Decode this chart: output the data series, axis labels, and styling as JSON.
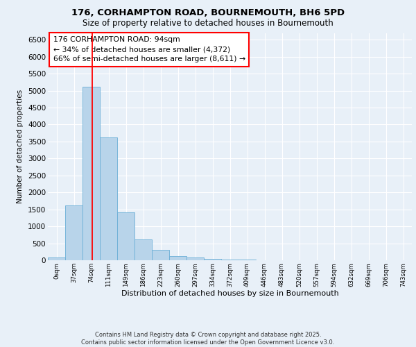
{
  "title_line1": "176, CORHAMPTON ROAD, BOURNEMOUTH, BH6 5PD",
  "title_line2": "Size of property relative to detached houses in Bournemouth",
  "xlabel": "Distribution of detached houses by size in Bournemouth",
  "ylabel": "Number of detached properties",
  "bar_color": "#b8d4ea",
  "bar_edge_color": "#6aaed6",
  "vline_color": "red",
  "annotation_text": "176 CORHAMPTON ROAD: 94sqm\n← 34% of detached houses are smaller (4,372)\n66% of semi-detached houses are larger (8,611) →",
  "categories": [
    "0sqm",
    "37sqm",
    "74sqm",
    "111sqm",
    "149sqm",
    "186sqm",
    "223sqm",
    "260sqm",
    "297sqm",
    "334sqm",
    "372sqm",
    "409sqm",
    "446sqm",
    "483sqm",
    "520sqm",
    "557sqm",
    "594sqm",
    "632sqm",
    "669sqm",
    "706sqm",
    "743sqm"
  ],
  "values": [
    75,
    1620,
    5120,
    3620,
    1420,
    610,
    300,
    130,
    75,
    45,
    30,
    15,
    5,
    3,
    2,
    1,
    0,
    0,
    0,
    0,
    0
  ],
  "ylim": [
    0,
    6700
  ],
  "yticks": [
    0,
    500,
    1000,
    1500,
    2000,
    2500,
    3000,
    3500,
    4000,
    4500,
    5000,
    5500,
    6000,
    6500
  ],
  "background_color": "#e8f0f8",
  "grid_color": "#ffffff",
  "footer": "Contains HM Land Registry data © Crown copyright and database right 2025.\nContains public sector information licensed under the Open Government Licence v3.0."
}
